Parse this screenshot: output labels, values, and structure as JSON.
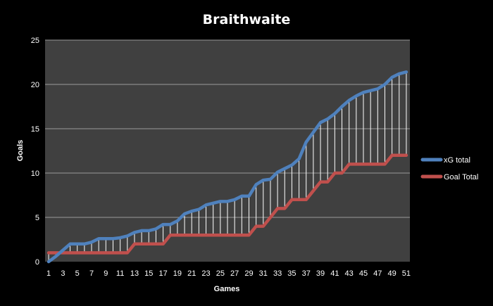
{
  "chart_data": {
    "type": "line",
    "title": "Braithwaite",
    "xlabel": "Games",
    "ylabel": "Goals",
    "x": [
      1,
      2,
      3,
      4,
      5,
      6,
      7,
      8,
      9,
      10,
      11,
      12,
      13,
      14,
      15,
      16,
      17,
      18,
      19,
      20,
      21,
      22,
      23,
      24,
      25,
      26,
      27,
      28,
      29,
      30,
      31,
      32,
      33,
      34,
      35,
      36,
      37,
      38,
      39,
      40,
      41,
      42,
      43,
      44,
      45,
      46,
      47,
      48,
      49,
      50,
      51
    ],
    "x_tick_labels": [
      "1",
      "3",
      "5",
      "7",
      "9",
      "11",
      "13",
      "15",
      "17",
      "19",
      "21",
      "23",
      "25",
      "27",
      "29",
      "31",
      "33",
      "35",
      "37",
      "39",
      "41",
      "43",
      "45",
      "47",
      "49",
      "51"
    ],
    "ylim": [
      0,
      25
    ],
    "y_ticks": [
      0,
      5,
      10,
      15,
      20,
      25
    ],
    "grid": true,
    "legend_position": "right",
    "drop_lines": true,
    "series": [
      {
        "name": "xG total",
        "color": "#4f81bd",
        "values": [
          0.0,
          0.6,
          1.3,
          2.0,
          2.0,
          2.0,
          2.2,
          2.6,
          2.6,
          2.6,
          2.7,
          2.9,
          3.3,
          3.5,
          3.5,
          3.7,
          4.2,
          4.2,
          4.6,
          5.4,
          5.7,
          5.9,
          6.4,
          6.6,
          6.8,
          6.8,
          7.0,
          7.4,
          7.4,
          8.7,
          9.2,
          9.3,
          10.1,
          10.5,
          10.9,
          11.6,
          13.5,
          14.6,
          15.7,
          16.1,
          16.7,
          17.5,
          18.2,
          18.7,
          19.1,
          19.3,
          19.5,
          20.0,
          20.8,
          21.2,
          21.4
        ]
      },
      {
        "name": "Goal Total",
        "color": "#c0504d",
        "values": [
          1,
          1,
          1,
          1,
          1,
          1,
          1,
          1,
          1,
          1,
          1,
          1,
          2,
          2,
          2,
          2,
          2,
          3,
          3,
          3,
          3,
          3,
          3,
          3,
          3,
          3,
          3,
          3,
          3,
          4,
          4,
          5,
          6,
          6,
          7,
          7,
          7,
          8,
          9,
          9,
          10,
          10,
          11,
          11,
          11,
          11,
          11,
          11,
          12,
          12,
          12
        ]
      }
    ]
  },
  "colors": {
    "background": "#000000",
    "plot_area": "#404040",
    "gridline": "#9a9a9a",
    "drop_line": "#ffffff",
    "text": "#ffffff"
  }
}
